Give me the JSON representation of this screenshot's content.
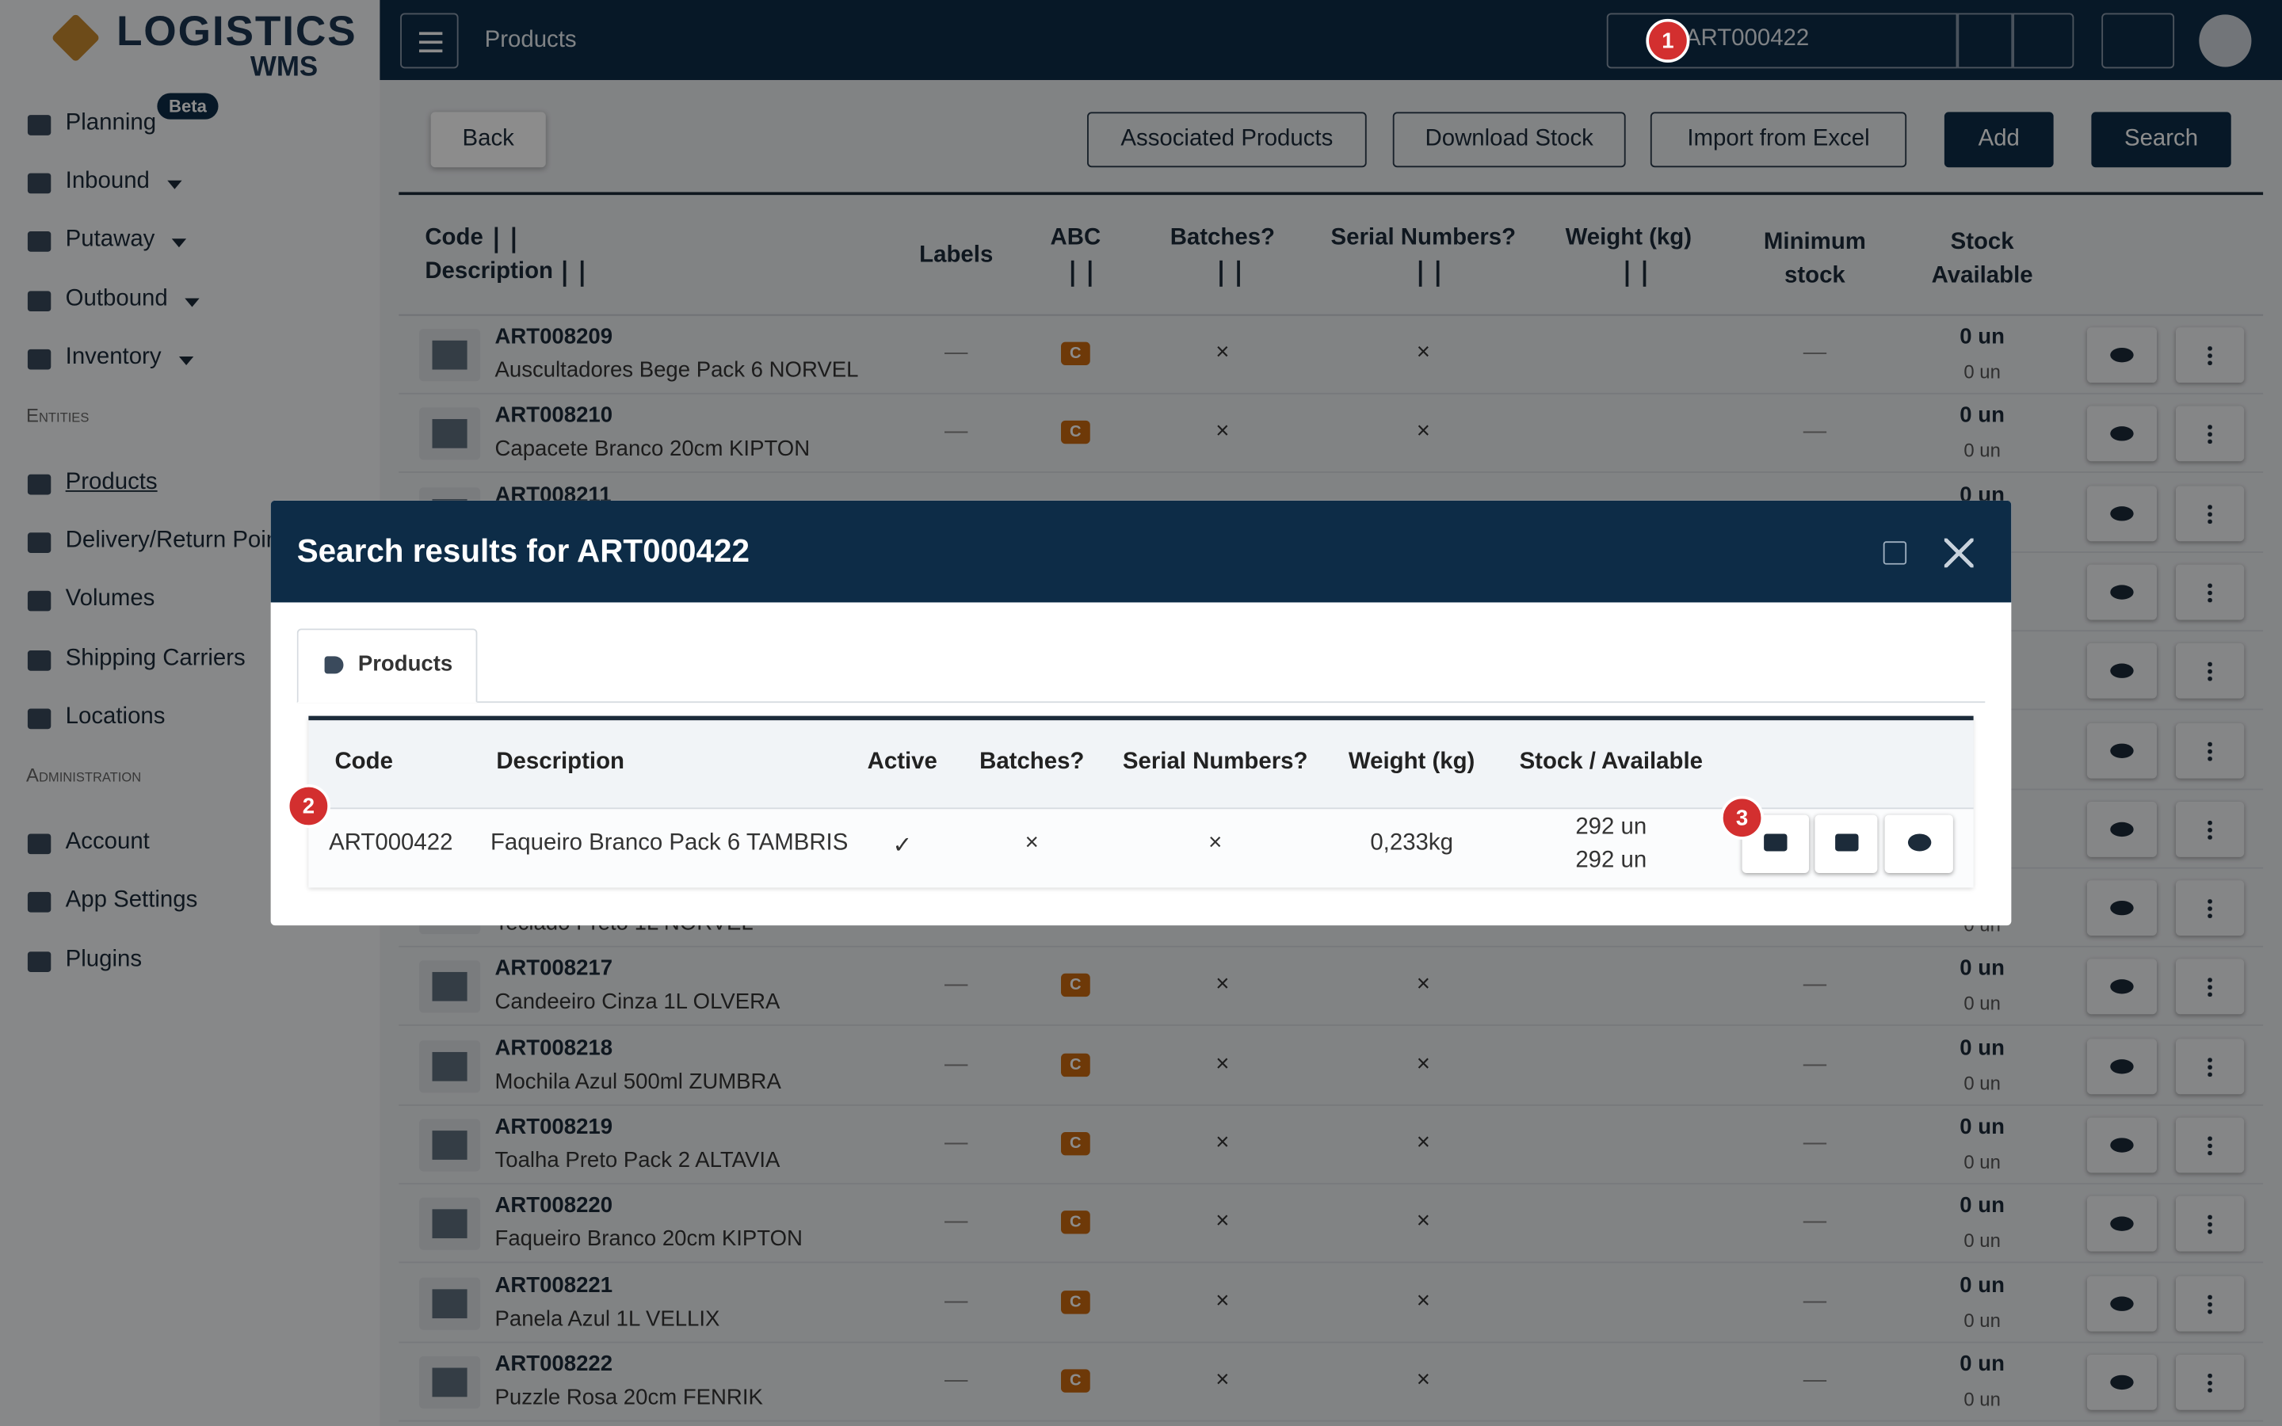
{
  "sidebar": {
    "brand": "LOGISTICS",
    "brand_sub": "WMS",
    "items": [
      {
        "label": "Planning",
        "badge": "Beta"
      },
      {
        "label": "Inbound",
        "caret": true
      },
      {
        "label": "Putaway",
        "caret": true
      },
      {
        "label": "Outbound",
        "caret": true
      },
      {
        "label": "Inventory",
        "caret": true
      },
      {
        "section": "Entities"
      },
      {
        "label": "Products",
        "active": true
      },
      {
        "label": "Delivery/Return Points"
      },
      {
        "label": "Volumes"
      },
      {
        "label": "Shipping Carriers"
      },
      {
        "label": "Locations"
      },
      {
        "section": "Administration"
      },
      {
        "label": "Account"
      },
      {
        "label": "App Settings"
      },
      {
        "label": "Plugins"
      }
    ]
  },
  "topbar": {
    "page_title": "Products",
    "search_value": "ART000422"
  },
  "toolbar": {
    "back": "Back",
    "associated": "Associated Products",
    "download": "Download Stock",
    "import": "Import from Excel",
    "add": "Add",
    "search": "Search"
  },
  "table": {
    "headers": {
      "code": "Code",
      "description": "Description",
      "labels": "Labels",
      "abc": "ABC",
      "batches": "Batches?",
      "serial": "Serial Numbers?",
      "weight": "Weight (kg)",
      "min_stock": "Minimum stock",
      "stock": "Stock Available"
    },
    "rows": [
      {
        "code": "ART008209",
        "description": "Auscultadores Bege Pack 6 NORVEL",
        "labels": "—",
        "abc": "C",
        "batches": "×",
        "serial": "×",
        "min_stock": "—",
        "stock": "0 un",
        "available": "0 un"
      },
      {
        "code": "ART008210",
        "description": "Capacete Branco 20cm KIPTON",
        "labels": "—",
        "abc": "C",
        "batches": "×",
        "serial": "×",
        "min_stock": "—",
        "stock": "0 un",
        "available": "0 un"
      },
      {
        "code": "ART008211",
        "stock": "0 un"
      },
      {},
      {},
      {},
      {},
      {
        "description": "Teclado Preto 1L NORVEL",
        "available": "0 un"
      },
      {
        "code": "ART008217",
        "description": "Candeeiro Cinza 1L OLVERA",
        "labels": "—",
        "abc": "C",
        "batches": "×",
        "serial": "×",
        "min_stock": "—",
        "stock": "0 un",
        "available": "0 un"
      },
      {
        "code": "ART008218",
        "description": "Mochila Azul 500ml ZUMBRA",
        "labels": "—",
        "abc": "C",
        "batches": "×",
        "serial": "×",
        "min_stock": "—",
        "stock": "0 un",
        "available": "0 un"
      },
      {
        "code": "ART008219",
        "description": "Toalha Preto Pack 2 ALTAVIA",
        "labels": "—",
        "abc": "C",
        "batches": "×",
        "serial": "×",
        "min_stock": "—",
        "stock": "0 un",
        "available": "0 un"
      },
      {
        "code": "ART008220",
        "description": "Faqueiro Branco 20cm KIPTON",
        "labels": "—",
        "abc": "C",
        "batches": "×",
        "serial": "×",
        "min_stock": "—",
        "stock": "0 un",
        "available": "0 un"
      },
      {
        "code": "ART008221",
        "description": "Panela Azul 1L VELLIX",
        "labels": "—",
        "abc": "C",
        "batches": "×",
        "serial": "×",
        "min_stock": "—",
        "stock": "0 un",
        "available": "0 un"
      },
      {
        "code": "ART008222",
        "description": "Puzzle Rosa 20cm FENRIK",
        "labels": "—",
        "abc": "C",
        "batches": "×",
        "serial": "×",
        "min_stock": "—",
        "stock": "0 un",
        "available": "0 un"
      }
    ]
  },
  "modal": {
    "title": "Search results for ART000422",
    "tab": "Products",
    "headers": {
      "code": "Code",
      "description": "Description",
      "active": "Active",
      "batches": "Batches?",
      "serial": "Serial Numbers?",
      "weight": "Weight (kg)",
      "stock": "Stock / Available"
    },
    "row": {
      "code": "ART000422",
      "description": "Faqueiro Branco Pack 6 TAMBRIS",
      "active": "✓",
      "batches": "×",
      "serial": "×",
      "weight": "0,233kg",
      "stock": "292 un",
      "available": "292 un"
    }
  },
  "markers": [
    "1",
    "2",
    "3"
  ]
}
